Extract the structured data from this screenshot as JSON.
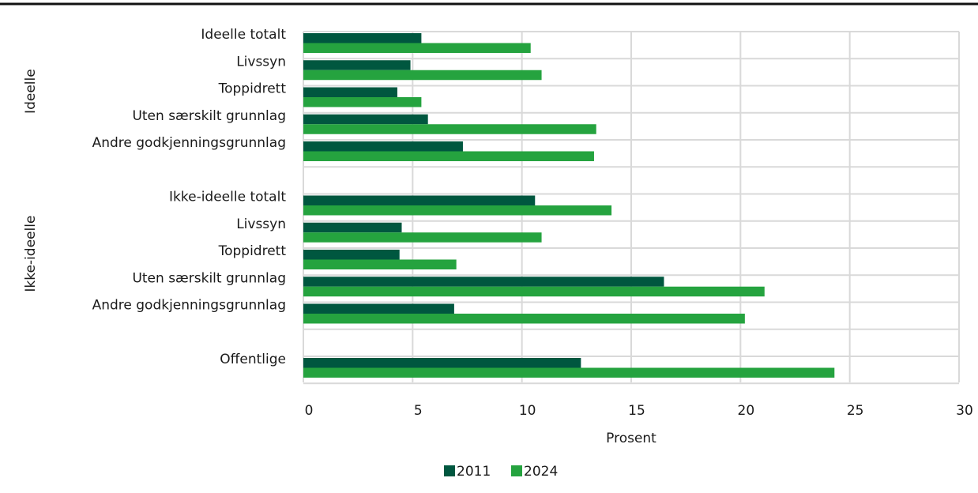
{
  "chart_data": {
    "type": "bar",
    "orientation": "horizontal",
    "groups": [
      {
        "label": "Ideelle",
        "categories": [
          "Ideelle totalt",
          "Livssyn",
          "Toppidrett",
          "Uten særskilt grunnlag",
          "Andre godkjenningsgrunnlag"
        ]
      },
      {
        "label": "Ikke-ideelle",
        "categories": [
          "Ikke-ideelle totalt",
          "Livssyn",
          "Toppidrett",
          "Uten særskilt grunnlag",
          "Andre godkjenningsgrunnlag"
        ]
      },
      {
        "label": "",
        "categories": [
          "Offentlige"
        ]
      }
    ],
    "categories": [
      "Ideelle totalt",
      "Livssyn",
      "Toppidrett",
      "Uten særskilt grunnlag",
      "Andre godkjenningsgrunnlag",
      "Ikke-ideelle totalt",
      "Livssyn",
      "Toppidrett",
      "Uten særskilt grunnlag",
      "Andre godkjenningsgrunnlag",
      "Offentlige"
    ],
    "series": [
      {
        "name": "2011",
        "color": "#00573f",
        "values": [
          5.4,
          4.9,
          4.3,
          5.7,
          7.3,
          10.6,
          4.5,
          4.4,
          16.5,
          6.9,
          12.7
        ]
      },
      {
        "name": "2024",
        "color": "#25a33f",
        "values": [
          10.4,
          10.9,
          5.4,
          13.4,
          13.3,
          14.1,
          10.9,
          7.0,
          21.1,
          20.2,
          24.3
        ]
      }
    ],
    "xlabel": "Prosent",
    "ylabel": "",
    "xlim": [
      0,
      30
    ],
    "xticks": [
      0,
      5,
      10,
      15,
      20,
      25,
      30
    ],
    "grid": true,
    "legend_position": "bottom"
  }
}
